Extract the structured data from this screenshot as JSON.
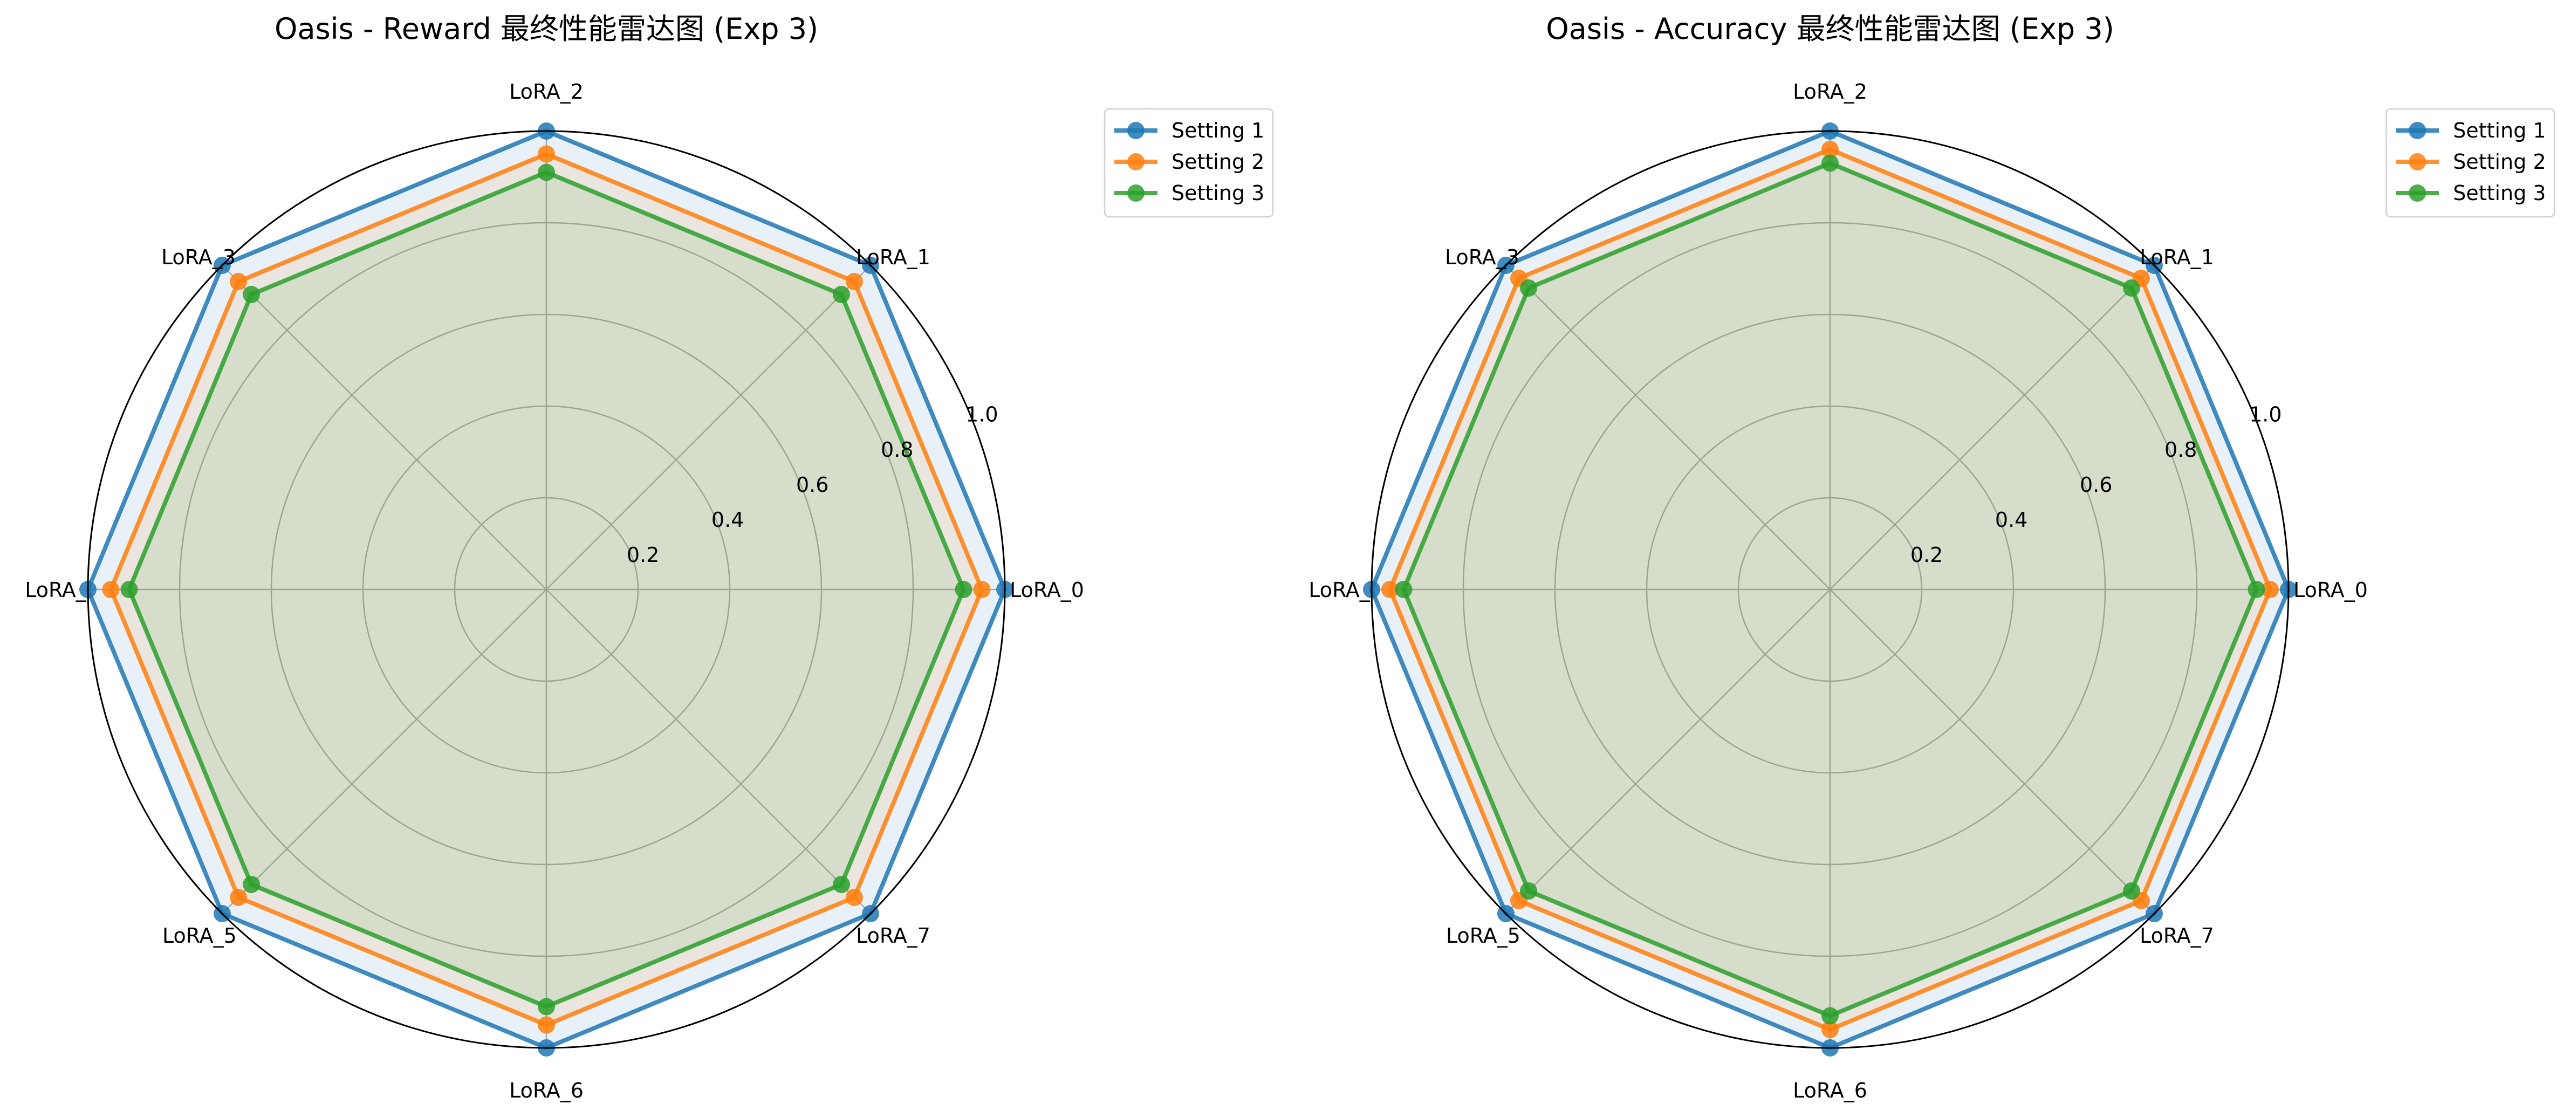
{
  "chart_data": [
    {
      "type": "radar",
      "title": "Oasis - Reward 最终性能雷达图 (Exp 3)",
      "categories": [
        "LoRA_0",
        "LoRA_1",
        "LoRA_2",
        "LoRA_3",
        "LoRA_4",
        "LoRA_5",
        "LoRA_6",
        "LoRA_7"
      ],
      "category_labels": [
        "LoRA_0",
        "LoRA_1",
        "LoRA_2",
        "LoRA_3",
        "LoRA_",
        "LoRA_5",
        "LoRA_6",
        "LoRA_7"
      ],
      "rlim": [
        0,
        1.0
      ],
      "rticks": [
        0.2,
        0.4,
        0.6,
        0.8,
        1.0
      ],
      "rtick_labels": [
        "0.2",
        "0.4",
        "0.6",
        "0.8",
        "1.0"
      ],
      "grid": true,
      "legend_position": "top-right",
      "series": [
        {
          "name": "Setting 1",
          "color": "#1f77b4",
          "values": [
            1.0,
            1.0,
            1.0,
            1.0,
            1.0,
            1.0,
            1.0,
            1.0
          ]
        },
        {
          "name": "Setting 2",
          "color": "#ff7f0e",
          "values": [
            0.95,
            0.95,
            0.95,
            0.95,
            0.95,
            0.95,
            0.95,
            0.95
          ]
        },
        {
          "name": "Setting 3",
          "color": "#2ca02c",
          "values": [
            0.91,
            0.91,
            0.91,
            0.91,
            0.91,
            0.91,
            0.91,
            0.91
          ]
        }
      ]
    },
    {
      "type": "radar",
      "title": "Oasis - Accuracy 最终性能雷达图 (Exp 3)",
      "categories": [
        "LoRA_0",
        "LoRA_1",
        "LoRA_2",
        "LoRA_3",
        "LoRA_4",
        "LoRA_5",
        "LoRA_6",
        "LoRA_7"
      ],
      "category_labels": [
        "LoRA_0",
        "LoRA_1",
        "LoRA_2",
        "LoRA_3",
        "LoRA_",
        "LoRA_5",
        "LoRA_6",
        "LoRA_7"
      ],
      "rlim": [
        0,
        1.0
      ],
      "rticks": [
        0.2,
        0.4,
        0.6,
        0.8,
        1.0
      ],
      "rtick_labels": [
        "0.2",
        "0.4",
        "0.6",
        "0.8",
        "1.0"
      ],
      "grid": true,
      "legend_position": "top-right",
      "series": [
        {
          "name": "Setting 1",
          "color": "#1f77b4",
          "values": [
            1.0,
            1.0,
            1.0,
            1.0,
            1.0,
            1.0,
            1.0,
            1.0
          ]
        },
        {
          "name": "Setting 2",
          "color": "#ff7f0e",
          "values": [
            0.96,
            0.96,
            0.96,
            0.96,
            0.96,
            0.96,
            0.96,
            0.96
          ]
        },
        {
          "name": "Setting 3",
          "color": "#2ca02c",
          "values": [
            0.93,
            0.93,
            0.93,
            0.93,
            0.93,
            0.93,
            0.93,
            0.93
          ]
        }
      ]
    }
  ]
}
